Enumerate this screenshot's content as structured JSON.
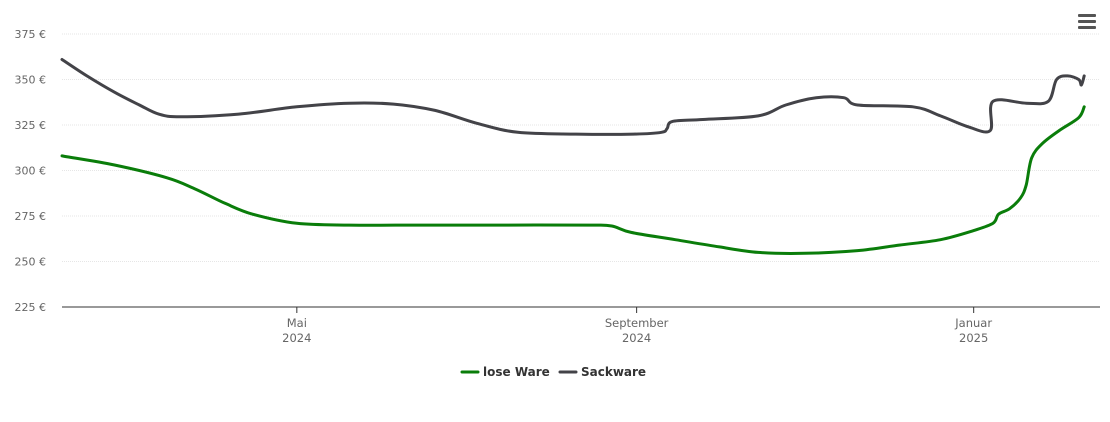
{
  "menu": {
    "icon": "hamburger-menu-icon"
  },
  "chart_data": {
    "type": "line",
    "title": "",
    "xlabel": "",
    "ylabel": "",
    "ylim": [
      225,
      375
    ],
    "yticks": [
      225,
      250,
      275,
      300,
      325,
      350,
      375
    ],
    "y_tick_labels": [
      "225 €",
      "250 €",
      "275 €",
      "300 €",
      "325 €",
      "350 €",
      "375 €"
    ],
    "xlim": [
      "2024-02-06",
      "2025-02-15"
    ],
    "x_ticks": [
      {
        "date": "2024-05-01",
        "line1": "Mai",
        "line2": "2024"
      },
      {
        "date": "2024-09-01",
        "line1": "September",
        "line2": "2024"
      },
      {
        "date": "2025-01-01",
        "line1": "Januar",
        "line2": "2025"
      }
    ],
    "grid": true,
    "legend_position": "bottom-center",
    "series": [
      {
        "name": "lose Ware",
        "color": "#0a7d0a",
        "points": [
          [
            "2024-02-06",
            308
          ],
          [
            "2024-02-25",
            303
          ],
          [
            "2024-03-15",
            296
          ],
          [
            "2024-03-25",
            290
          ],
          [
            "2024-04-05",
            282
          ],
          [
            "2024-04-15",
            276
          ],
          [
            "2024-05-01",
            271
          ],
          [
            "2024-05-20",
            270
          ],
          [
            "2024-06-15",
            270
          ],
          [
            "2024-07-15",
            270
          ],
          [
            "2024-08-15",
            270
          ],
          [
            "2024-08-23",
            269.5
          ],
          [
            "2024-08-30",
            266
          ],
          [
            "2024-09-15",
            262
          ],
          [
            "2024-10-01",
            258
          ],
          [
            "2024-10-15",
            255
          ],
          [
            "2024-11-01",
            254.5
          ],
          [
            "2024-11-20",
            256
          ],
          [
            "2024-12-05",
            259
          ],
          [
            "2024-12-20",
            262
          ],
          [
            "2025-01-01",
            267
          ],
          [
            "2025-01-08",
            271
          ],
          [
            "2025-01-10",
            276
          ],
          [
            "2025-01-14",
            279
          ],
          [
            "2025-01-18",
            285
          ],
          [
            "2025-01-20",
            292
          ],
          [
            "2025-01-22",
            307
          ],
          [
            "2025-01-26",
            315
          ],
          [
            "2025-02-01",
            322
          ],
          [
            "2025-02-08",
            329
          ],
          [
            "2025-02-10",
            335
          ]
        ]
      },
      {
        "name": "Sackware",
        "color": "#434348",
        "points": [
          [
            "2024-02-06",
            361
          ],
          [
            "2024-02-15",
            352
          ],
          [
            "2024-02-25",
            343
          ],
          [
            "2024-03-05",
            336
          ],
          [
            "2024-03-12",
            331
          ],
          [
            "2024-03-20",
            329.5
          ],
          [
            "2024-04-10",
            331
          ],
          [
            "2024-05-01",
            335
          ],
          [
            "2024-05-20",
            337
          ],
          [
            "2024-06-05",
            336.5
          ],
          [
            "2024-06-20",
            333
          ],
          [
            "2024-07-05",
            326
          ],
          [
            "2024-07-20",
            321
          ],
          [
            "2024-08-10",
            320
          ],
          [
            "2024-08-31",
            320
          ],
          [
            "2024-09-10",
            321
          ],
          [
            "2024-09-12",
            323
          ],
          [
            "2024-09-14",
            327
          ],
          [
            "2024-09-25",
            328
          ],
          [
            "2024-10-15",
            330
          ],
          [
            "2024-10-25",
            336
          ],
          [
            "2024-11-05",
            340
          ],
          [
            "2024-11-15",
            340
          ],
          [
            "2024-11-20",
            336
          ],
          [
            "2024-12-10",
            335
          ],
          [
            "2024-12-20",
            330
          ],
          [
            "2024-12-30",
            324
          ],
          [
            "2025-01-07",
            322
          ],
          [
            "2025-01-08",
            338
          ],
          [
            "2025-01-20",
            337
          ],
          [
            "2025-01-28",
            338
          ],
          [
            "2025-01-31",
            350
          ],
          [
            "2025-02-04",
            352
          ],
          [
            "2025-02-08",
            350
          ],
          [
            "2025-02-09",
            347
          ],
          [
            "2025-02-10",
            352
          ]
        ]
      }
    ]
  }
}
